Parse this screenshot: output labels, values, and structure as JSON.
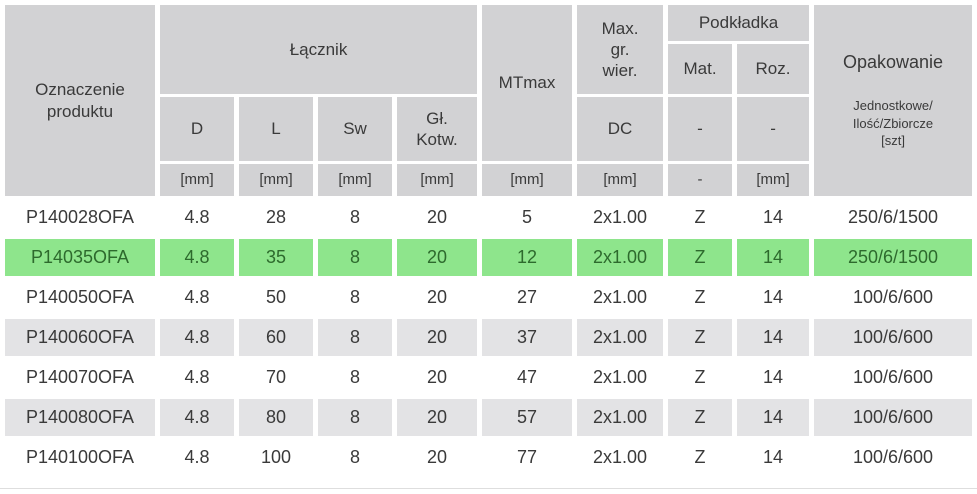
{
  "table": {
    "header": {
      "product": "Oznaczenie\nproduktu",
      "lacznik": "Łącznik",
      "mtmax": "MTmax",
      "max_gr_wier": "Max.\ngr.\nwier.",
      "podkladka": "Podkładka",
      "opakowanie_title": "Opakowanie",
      "opakowanie_sub": "Jednostkowe/\nIlość/Zbiorcze\n[szt]",
      "sub": {
        "d": "D",
        "l": "L",
        "sw": "Sw",
        "gl_kotw": "Gł.\nKotw.",
        "dc": "DC",
        "mat": "Mat.",
        "roz": "Roz.",
        "dash": "-"
      },
      "units": {
        "mm": "[mm]",
        "dash": "-"
      }
    },
    "row_keys": [
      "code",
      "d",
      "l",
      "sw",
      "gl_kotw",
      "mtmax",
      "dc",
      "mat",
      "roz",
      "opak"
    ],
    "rows": [
      {
        "bg": "white",
        "code": "P140028OFA",
        "d": "4.8",
        "l": "28",
        "sw": "8",
        "gl_kotw": "20",
        "mtmax": "5",
        "dc": "2x1.00",
        "mat": "Z",
        "roz": "14",
        "opak": "250/6/1500"
      },
      {
        "bg": "green",
        "code": "P14035OFA",
        "d": "4.8",
        "l": "35",
        "sw": "8",
        "gl_kotw": "20",
        "mtmax": "12",
        "dc": "2x1.00",
        "mat": "Z",
        "roz": "14",
        "opak": "250/6/1500"
      },
      {
        "bg": "white",
        "code": "P140050OFA",
        "d": "4.8",
        "l": "50",
        "sw": "8",
        "gl_kotw": "20",
        "mtmax": "27",
        "dc": "2x1.00",
        "mat": "Z",
        "roz": "14",
        "opak": "100/6/600"
      },
      {
        "bg": "gray",
        "code": "P140060OFA",
        "d": "4.8",
        "l": "60",
        "sw": "8",
        "gl_kotw": "20",
        "mtmax": "37",
        "dc": "2x1.00",
        "mat": "Z",
        "roz": "14",
        "opak": "100/6/600"
      },
      {
        "bg": "white",
        "code": "P140070OFA",
        "d": "4.8",
        "l": "70",
        "sw": "8",
        "gl_kotw": "20",
        "mtmax": "47",
        "dc": "2x1.00",
        "mat": "Z",
        "roz": "14",
        "opak": "100/6/600"
      },
      {
        "bg": "gray",
        "code": "P140080OFA",
        "d": "4.8",
        "l": "80",
        "sw": "8",
        "gl_kotw": "20",
        "mtmax": "57",
        "dc": "2x1.00",
        "mat": "Z",
        "roz": "14",
        "opak": "100/6/600"
      },
      {
        "bg": "white",
        "code": "P140100OFA",
        "d": "4.8",
        "l": "100",
        "sw": "8",
        "gl_kotw": "20",
        "mtmax": "77",
        "dc": "2x1.00",
        "mat": "Z",
        "roz": "14",
        "opak": "100/6/600"
      }
    ],
    "colors": {
      "header_bg": "#d2d2d4",
      "alt_row_bg": "#e3e3e5",
      "highlight_bg": "#8ee58c",
      "highlight_text": "#2d6a2d",
      "text": "#3a3a3a"
    }
  }
}
